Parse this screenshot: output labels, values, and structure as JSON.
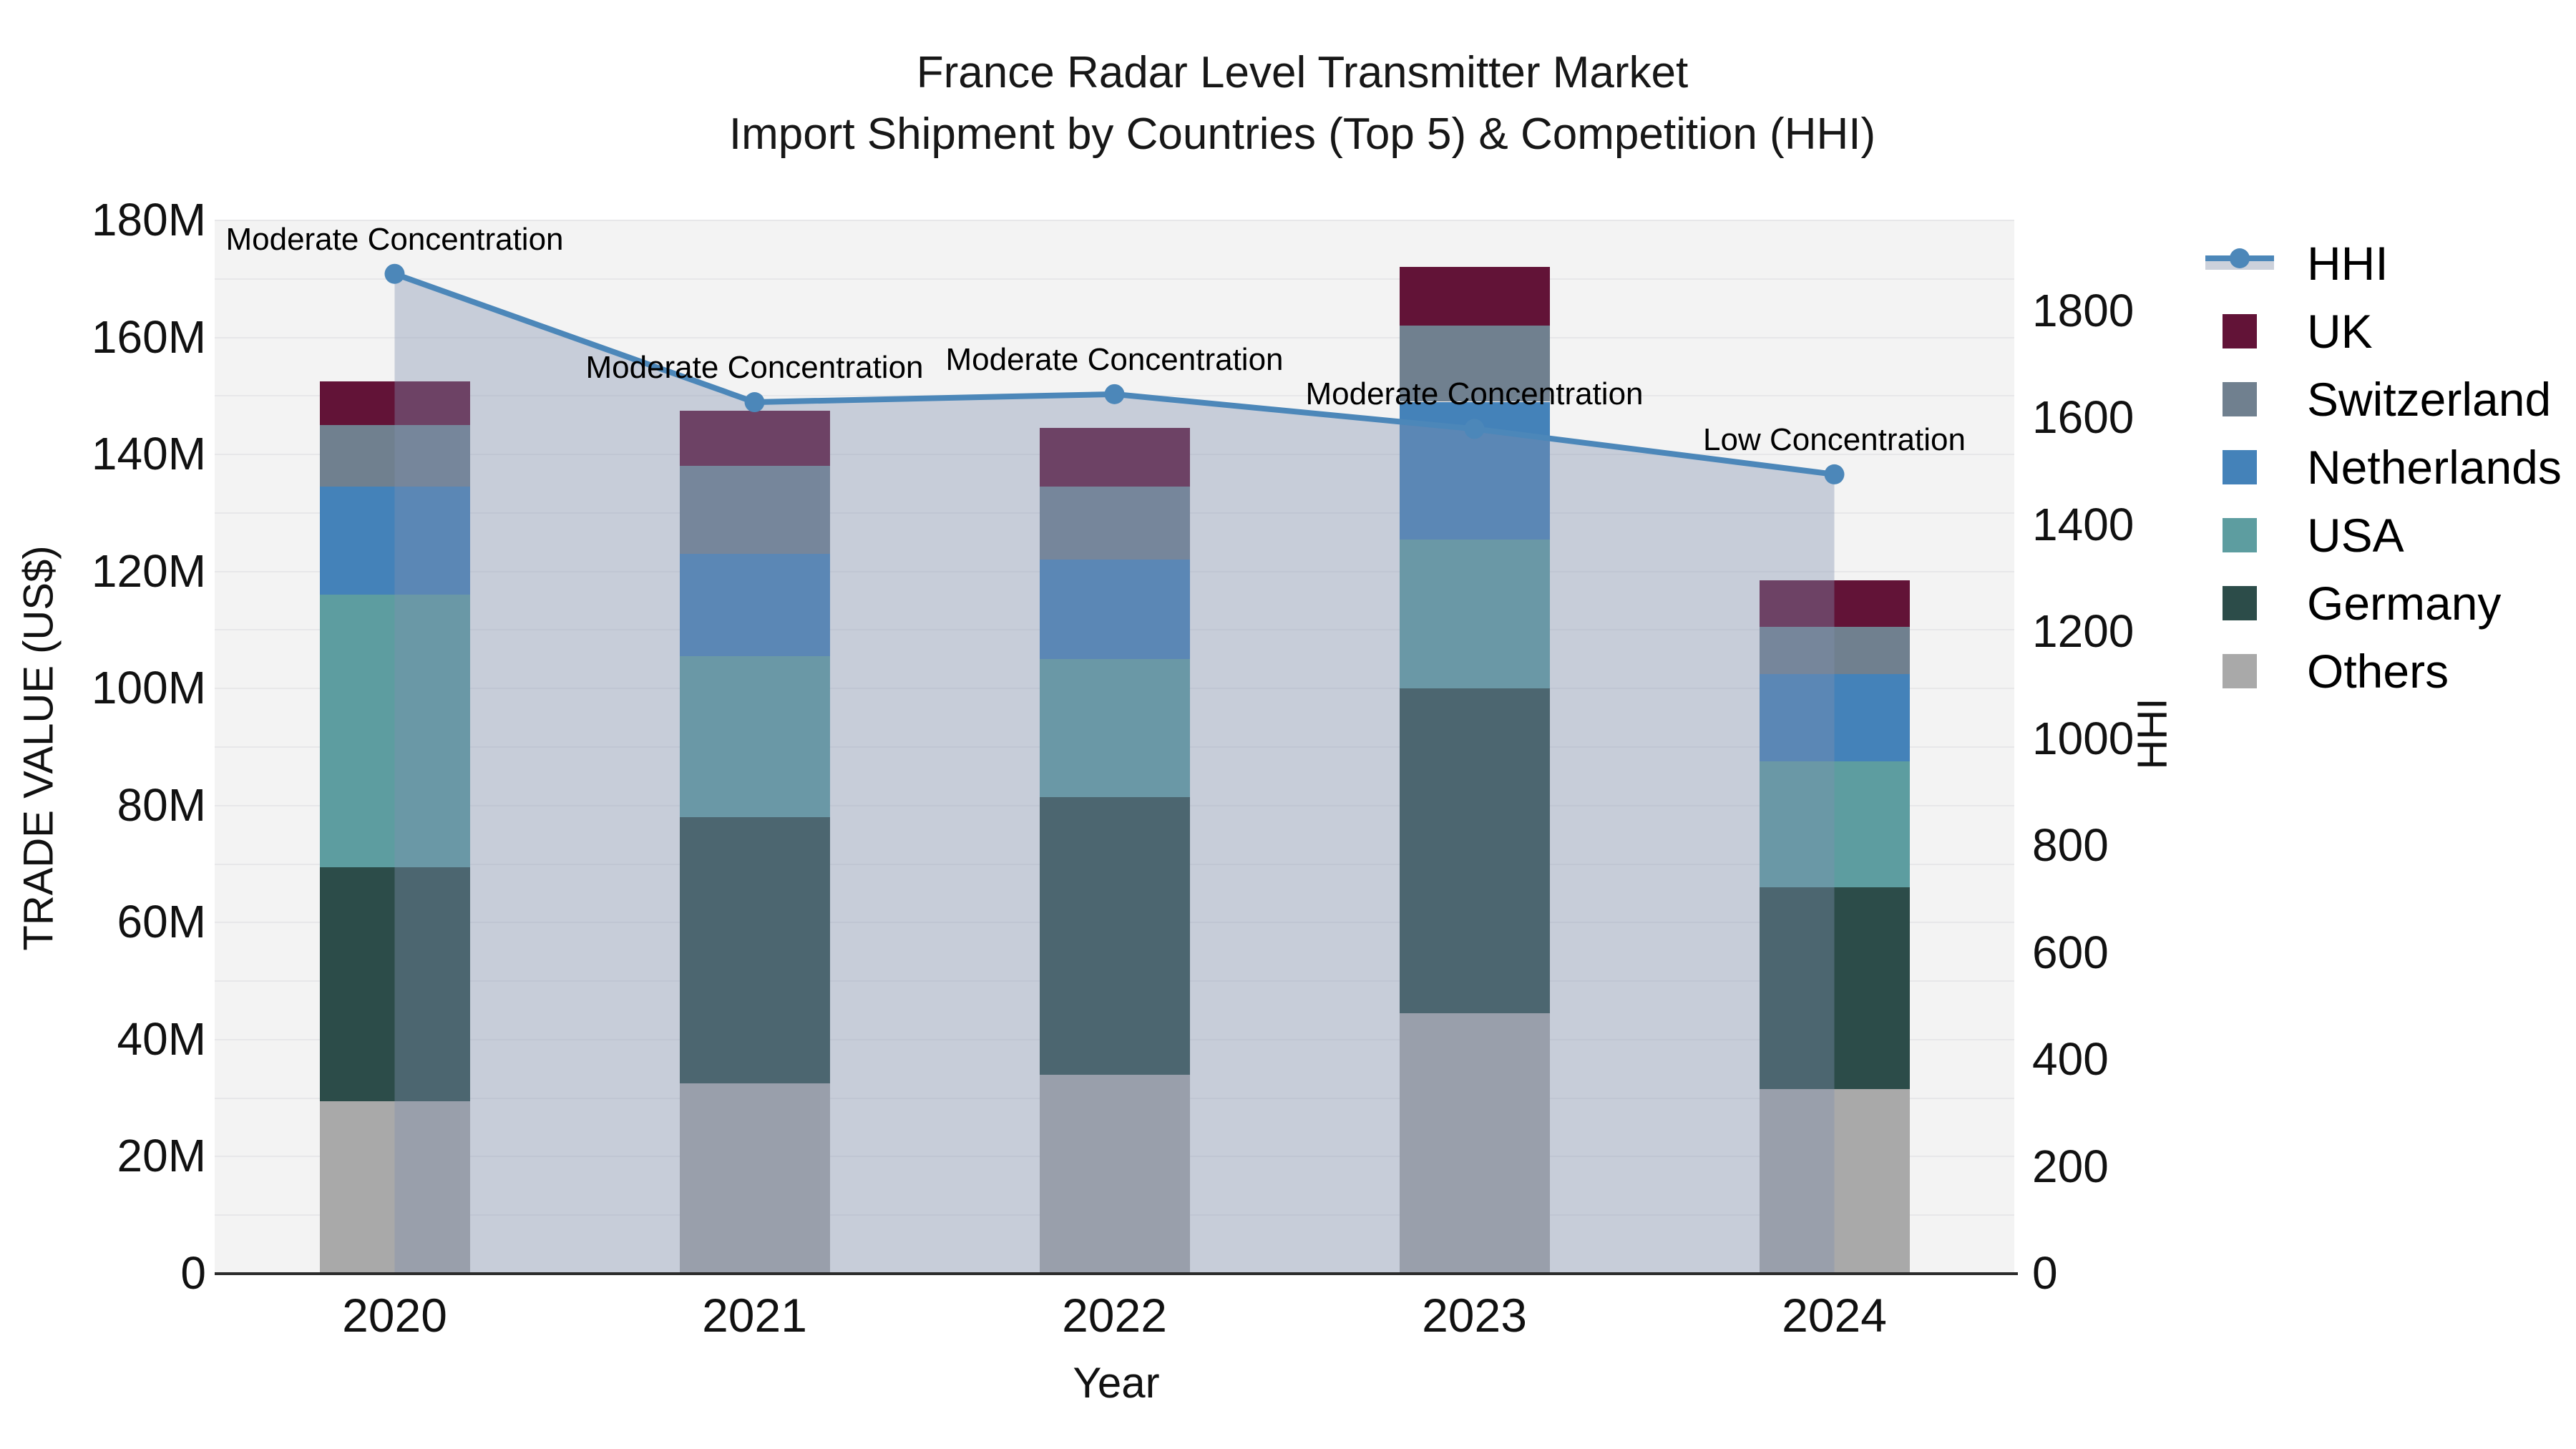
{
  "title": {
    "line1": "France Radar Level Transmitter Market",
    "line2": "Import Shipment by Countries (Top 5) & Competition (HHI)"
  },
  "axes": {
    "x_label": "Year",
    "y_left_label": "TRADE VALUE (US$)",
    "y_right_label": "HHI",
    "left_ticks": [
      "0",
      "20M",
      "40M",
      "60M",
      "80M",
      "100M",
      "120M",
      "140M",
      "160M",
      "180M"
    ],
    "right_ticks": [
      "0",
      "200",
      "400",
      "600",
      "800",
      "1000",
      "1200",
      "1400",
      "1600",
      "1800"
    ],
    "x_ticks": [
      "2020",
      "2021",
      "2022",
      "2023",
      "2024"
    ]
  },
  "legend": {
    "items": [
      {
        "label": "HHI",
        "type": "line",
        "color": "#4c87b9",
        "band_color": "#ccd1db"
      },
      {
        "label": "UK",
        "type": "box",
        "color": "#621337"
      },
      {
        "label": "Switzerland",
        "type": "box",
        "color": "#70808f"
      },
      {
        "label": "Netherlands",
        "type": "box",
        "color": "#4482b9"
      },
      {
        "label": "USA",
        "type": "box",
        "color": "#5d9da0"
      },
      {
        "label": "Germany",
        "type": "box",
        "color": "#2c4c49"
      },
      {
        "label": "Others",
        "type": "box",
        "color": "#a9a9a9"
      }
    ]
  },
  "chart_data": {
    "type": "bar",
    "subtype": "stacked-bars-with-hhi-line-and-area",
    "title": "France Radar Level Transmitter Market — Import Shipment by Countries (Top 5) & Competition (HHI)",
    "xlabel": "Year",
    "ylabel_left": "TRADE VALUE (US$)",
    "ylabel_right": "HHI",
    "categories": [
      "2020",
      "2021",
      "2022",
      "2023",
      "2024"
    ],
    "value_unit": "Million US$",
    "ylim_left_millions": [
      0,
      180
    ],
    "ylim_right_hhi": [
      0,
      1970
    ],
    "grid": "horizontal every 10M, on",
    "legend_position": "right",
    "series": [
      {
        "name": "Others",
        "color": "#a9a9a9",
        "values": [
          29.5,
          32.5,
          34.0,
          44.5,
          31.5
        ]
      },
      {
        "name": "Germany",
        "color": "#2c4c49",
        "values": [
          40.0,
          45.5,
          47.5,
          55.5,
          34.5
        ]
      },
      {
        "name": "USA",
        "color": "#5d9da0",
        "values": [
          46.5,
          27.5,
          23.5,
          25.5,
          21.5
        ]
      },
      {
        "name": "Netherlands",
        "color": "#4482b9",
        "values": [
          18.5,
          17.5,
          17.0,
          23.5,
          15.0
        ]
      },
      {
        "name": "Switzerland",
        "color": "#70808f",
        "values": [
          10.5,
          15.0,
          12.5,
          13.0,
          8.0
        ]
      },
      {
        "name": "UK",
        "color": "#621337",
        "values": [
          7.5,
          9.5,
          10.0,
          10.0,
          8.0
        ]
      }
    ],
    "stack_totals_millions": [
      152.5,
      147.5,
      144.5,
      172.0,
      118.5
    ],
    "line_series": {
      "name": "HHI",
      "color": "#4c87b9",
      "area_fill": "rgba(130,145,175,0.38)",
      "values": [
        1870,
        1630,
        1645,
        1580,
        1495
      ],
      "annotations": [
        "Moderate Concentration",
        "Moderate Concentration",
        "Moderate Concentration",
        "Moderate Concentration",
        "Low Concentration"
      ]
    }
  }
}
